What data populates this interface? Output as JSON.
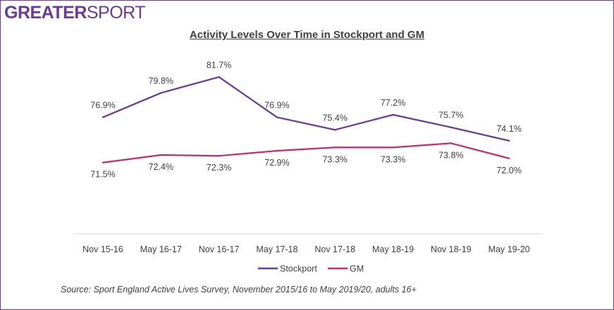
{
  "brand": {
    "bold": "GREATER",
    "light": "SPORT"
  },
  "chart_data": {
    "type": "line",
    "title": "Activity Levels Over Time in Stockport and GM",
    "categories": [
      "Nov 15-16",
      "May 16-17",
      "Nov 16-17",
      "May 17-18",
      "Nov 17-18",
      "May 18-19",
      "Nov 18-19",
      "May 19-20"
    ],
    "series": [
      {
        "name": "Stockport",
        "values": [
          76.9,
          79.8,
          81.7,
          76.9,
          75.4,
          77.2,
          75.7,
          74.1
        ],
        "color": "#6b3a98",
        "labels": [
          "76.9%",
          "79.8%",
          "81.7%",
          "76.9%",
          "75.4%",
          "77.2%",
          "75.7%",
          "74.1%"
        ]
      },
      {
        "name": "GM",
        "values": [
          71.5,
          72.4,
          72.3,
          72.9,
          73.3,
          73.3,
          73.8,
          72.0
        ],
        "color": "#c8286e",
        "labels": [
          "71.5%",
          "72.4%",
          "72.3%",
          "72.9%",
          "73.3%",
          "73.3%",
          "73.8%",
          "72.0%"
        ]
      }
    ],
    "ylim": [
      64,
      85
    ],
    "grid": false,
    "legend": "bottom"
  },
  "source": "Source: Sport England Active Lives Survey, November 2015/16 to May 2019/20, adults 16+"
}
